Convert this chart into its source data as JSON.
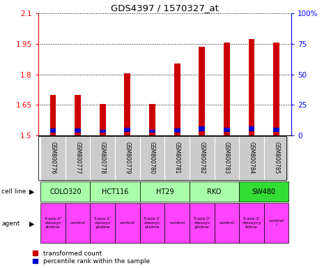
{
  "title": "GDS4397 / 1570327_at",
  "samples": [
    "GSM800776",
    "GSM800777",
    "GSM800778",
    "GSM800779",
    "GSM800780",
    "GSM800781",
    "GSM800782",
    "GSM800783",
    "GSM800784",
    "GSM800785"
  ],
  "red_values": [
    1.7,
    1.7,
    1.655,
    1.805,
    1.655,
    1.855,
    1.935,
    1.955,
    1.975,
    1.955
  ],
  "blue_bottom": [
    1.515,
    1.515,
    1.512,
    1.518,
    1.512,
    1.515,
    1.522,
    1.518,
    1.522,
    1.518
  ],
  "blue_height": [
    0.018,
    0.018,
    0.015,
    0.02,
    0.015,
    0.018,
    0.022,
    0.02,
    0.022,
    0.02
  ],
  "y_min": 1.5,
  "y_max": 2.1,
  "y_ticks_left": [
    1.5,
    1.65,
    1.8,
    1.95,
    2.1
  ],
  "y_ticks_right_vals": [
    0,
    25,
    50,
    75,
    100
  ],
  "y_ticks_right_labels": [
    "0",
    "25",
    "50",
    "75",
    "100%"
  ],
  "cell_lines": [
    {
      "name": "COLO320",
      "start": 0,
      "end": 1,
      "color": "#bbffbb"
    },
    {
      "name": "HCT116",
      "start": 2,
      "end": 3,
      "color": "#bbffbb"
    },
    {
      "name": "HT29",
      "start": 4,
      "end": 5,
      "color": "#bbffbb"
    },
    {
      "name": "RKO",
      "start": 6,
      "end": 7,
      "color": "#bbffbb"
    },
    {
      "name": "SW480",
      "start": 8,
      "end": 9,
      "color": "#33ee33"
    }
  ],
  "cell_line_spans": [
    [
      0,
      2
    ],
    [
      2,
      4
    ],
    [
      4,
      6
    ],
    [
      6,
      8
    ],
    [
      8,
      10
    ]
  ],
  "agents": [
    {
      "name": "5-aza-2'\n-deoxyc\nytidine",
      "start": 0,
      "end": 1
    },
    {
      "name": "control",
      "start": 1,
      "end": 2
    },
    {
      "name": "5-aza-2'\n-deoxyc\nytidine",
      "start": 2,
      "end": 3
    },
    {
      "name": "control",
      "start": 3,
      "end": 4
    },
    {
      "name": "5-aza-2'\n-deoxyc\nytidine",
      "start": 4,
      "end": 5
    },
    {
      "name": "control",
      "start": 5,
      "end": 6
    },
    {
      "name": "5-aza-2'\n-deoxyc\nytidine",
      "start": 6,
      "end": 7
    },
    {
      "name": "control",
      "start": 7,
      "end": 8
    },
    {
      "name": "5-aza-2'\n-deoxycy\ntidine",
      "start": 8,
      "end": 9
    },
    {
      "name": "control\nl",
      "start": 9,
      "end": 10
    }
  ],
  "bar_color_red": "#cc0000",
  "bar_color_blue": "#0000cc",
  "bar_width": 0.25,
  "sample_box_color": "#cccccc",
  "cell_line_colors": [
    "#aaffaa",
    "#aaffaa",
    "#aaffaa",
    "#aaffaa",
    "#33dd33"
  ],
  "agent_color": "#ff44ff",
  "agent_control_color": "#ff44ff"
}
